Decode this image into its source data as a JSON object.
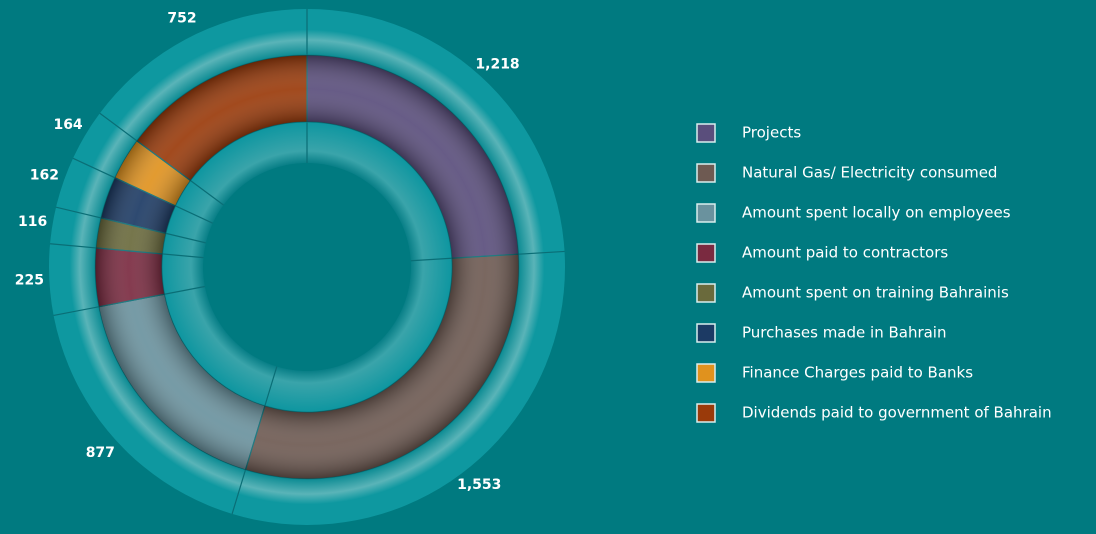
{
  "chart_data": {
    "type": "donut",
    "categories": [
      "Projects",
      "Natural Gas/ Electricity consumed",
      "Amount spent locally on employees",
      "Amount paid to contractors",
      "Amount spent on training Bahrainis",
      "Purchases made in Bahrain",
      "Finance Charges paid to Banks",
      "Dividends paid to government of Bahrain"
    ],
    "values": [
      1218,
      1553,
      877,
      225,
      116,
      162,
      164,
      752
    ],
    "value_labels": [
      "1,218",
      "1,553",
      "877",
      "225",
      "116",
      "162",
      "164",
      "752"
    ],
    "colors": [
      "#5a4e7c",
      "#6e5a52",
      "#6a929e",
      "#7a2a40",
      "#6a6a3c",
      "#1c3a64",
      "#e0921e",
      "#9a3a0a"
    ]
  }
}
